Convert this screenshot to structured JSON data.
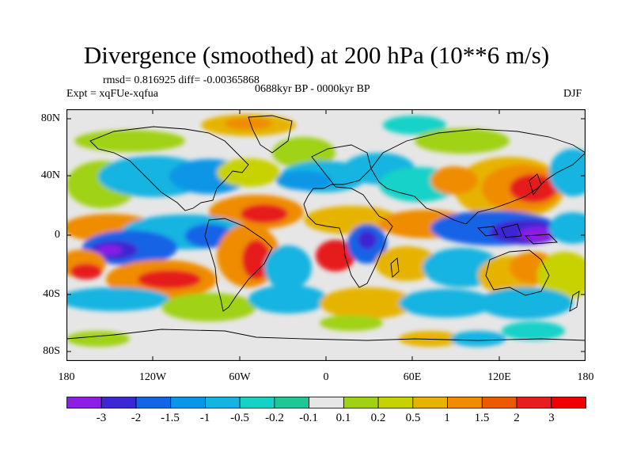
{
  "plot": {
    "title": "Divergence (smoothed) at 200 hPa (10**6 m/s)",
    "stats": "rmsd= 0.816925 diff= -0.00365868",
    "expt": "Expt = xqFUe-xqfua",
    "period": "0688kyr BP - 0000kyr BP",
    "season": "DJF"
  },
  "axes": {
    "lat_labels": [
      "80N",
      "40N",
      "0",
      "40S",
      "80S"
    ],
    "lon_labels": [
      "180",
      "120W",
      "60W",
      "0",
      "60E",
      "120E",
      "180"
    ]
  },
  "colorbar": {
    "labels": [
      "-3",
      "-2",
      "-1.5",
      "-1",
      "-0.5",
      "-0.2",
      "-0.1",
      "0.1",
      "0.2",
      "0.5",
      "1",
      "1.5",
      "2",
      "3"
    ],
    "colors": [
      "#8c1ee6",
      "#3c28d2",
      "#1464e6",
      "#0a96e6",
      "#14b4e1",
      "#14d2c8",
      "#1ec896",
      "#e6e6e6",
      "#a0d214",
      "#c8d200",
      "#e6b400",
      "#ef8c00",
      "#eb5a00",
      "#e61e1e",
      "#f00000"
    ]
  }
}
